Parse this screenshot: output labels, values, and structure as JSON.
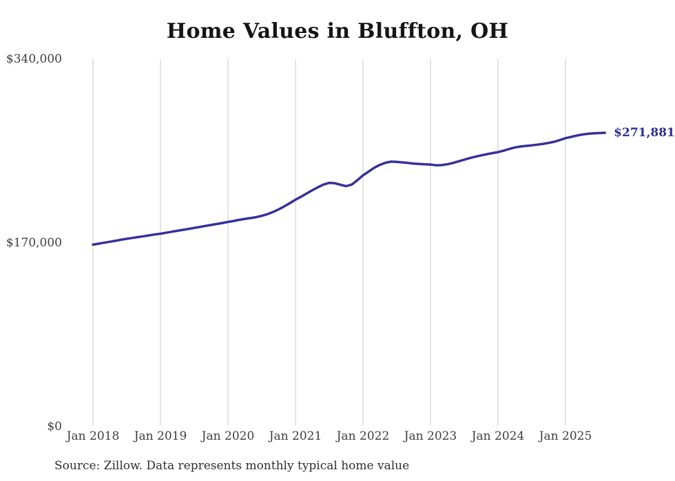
{
  "title": "Home Values in Bluffton, OH",
  "source_note": "Source: Zillow. Data represents monthly typical home value",
  "colors": {
    "line": "#35309b",
    "end_label": "#2b2d9b",
    "gridline": "#c9c9c9",
    "tick_text": "#3d3d3d",
    "title_text": "#151515"
  },
  "chart_data": {
    "type": "line",
    "title": "Home Values in Bluffton, OH",
    "xlabel": "",
    "ylabel": "",
    "ylim": [
      0,
      340000
    ],
    "grid": "vertical-only",
    "legend": "none",
    "frequency": "monthly",
    "x_start": "2018-01",
    "x_end": "2025-08",
    "y_ticks": [
      {
        "label": "$340,000",
        "value": 340000
      },
      {
        "label": "$170,000",
        "value": 170000
      },
      {
        "label": "$0",
        "value": 0
      }
    ],
    "x_ticks": [
      {
        "label": "Jan 2018"
      },
      {
        "label": "Jan 2019"
      },
      {
        "label": "Jan 2020"
      },
      {
        "label": "Jan 2021"
      },
      {
        "label": "Jan 2022"
      },
      {
        "label": "Jan 2023"
      },
      {
        "label": "Jan 2024"
      },
      {
        "label": "Jan 2025"
      }
    ],
    "last_value_label": "$271,881",
    "series": [
      {
        "name": "Typical home value",
        "values": [
          168400,
          169300,
          170200,
          171100,
          172000,
          172900,
          173800,
          174600,
          175400,
          176200,
          177000,
          177800,
          178500,
          179400,
          180300,
          181200,
          182100,
          183000,
          183900,
          184800,
          185700,
          186600,
          187500,
          188400,
          189400,
          190300,
          191300,
          192200,
          193000,
          193800,
          195000,
          196600,
          198600,
          201000,
          203800,
          206800,
          210000,
          212800,
          215800,
          218800,
          221600,
          224000,
          225600,
          225200,
          223800,
          222500,
          224000,
          228000,
          232500,
          236000,
          239500,
          242200,
          244200,
          245200,
          245000,
          244500,
          244000,
          243400,
          243000,
          242700,
          242500,
          241800,
          242000,
          242800,
          244000,
          245500,
          247000,
          248500,
          249800,
          251000,
          252100,
          253100,
          254000,
          255400,
          256900,
          258300,
          259200,
          259800,
          260300,
          260900,
          261600,
          262500,
          263600,
          265200,
          266900,
          268100,
          269300,
          270300,
          271000,
          271400,
          271600,
          271881
        ]
      }
    ]
  }
}
